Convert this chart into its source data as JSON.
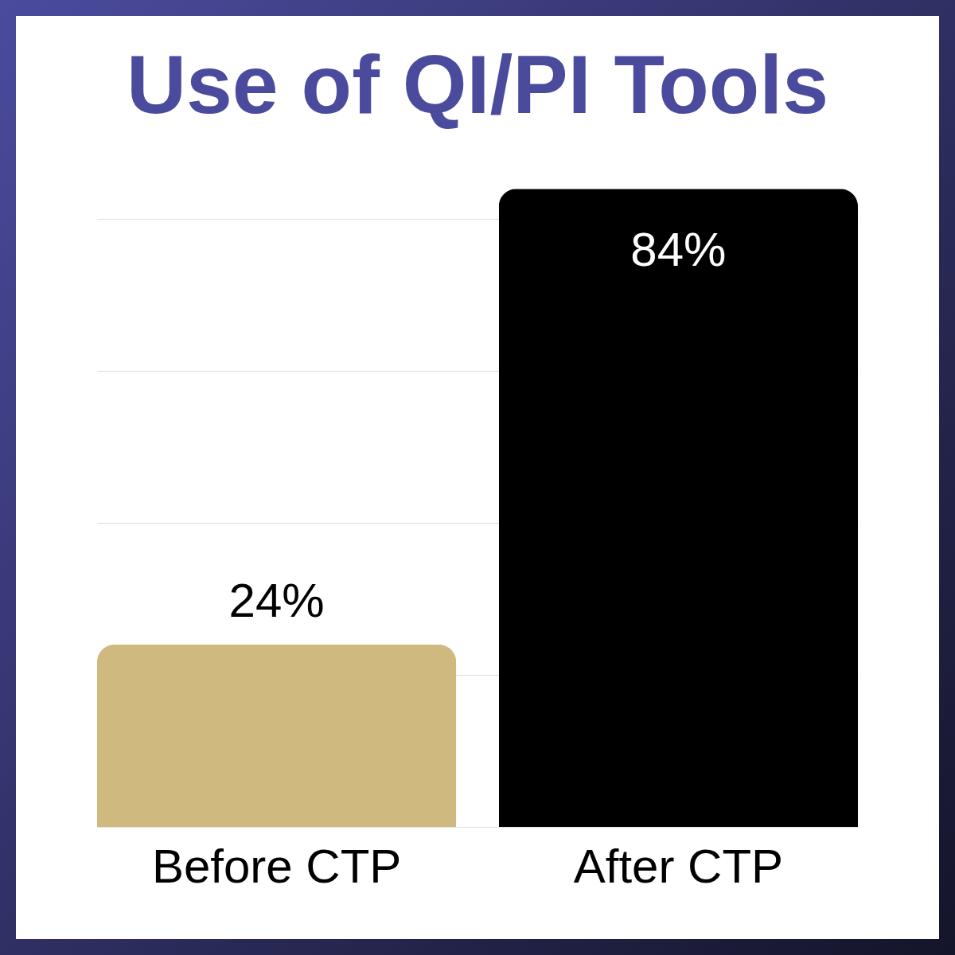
{
  "chart_data": {
    "type": "bar",
    "title": "Use of QI/PI Tools",
    "categories": [
      "Before CTP",
      "After CTP"
    ],
    "values": [
      24,
      84
    ],
    "value_labels": [
      "24%",
      "84%"
    ],
    "colors": [
      "#cfb97e",
      "#000000"
    ],
    "tick_labels": "x",
    "grid": "y"
  }
}
